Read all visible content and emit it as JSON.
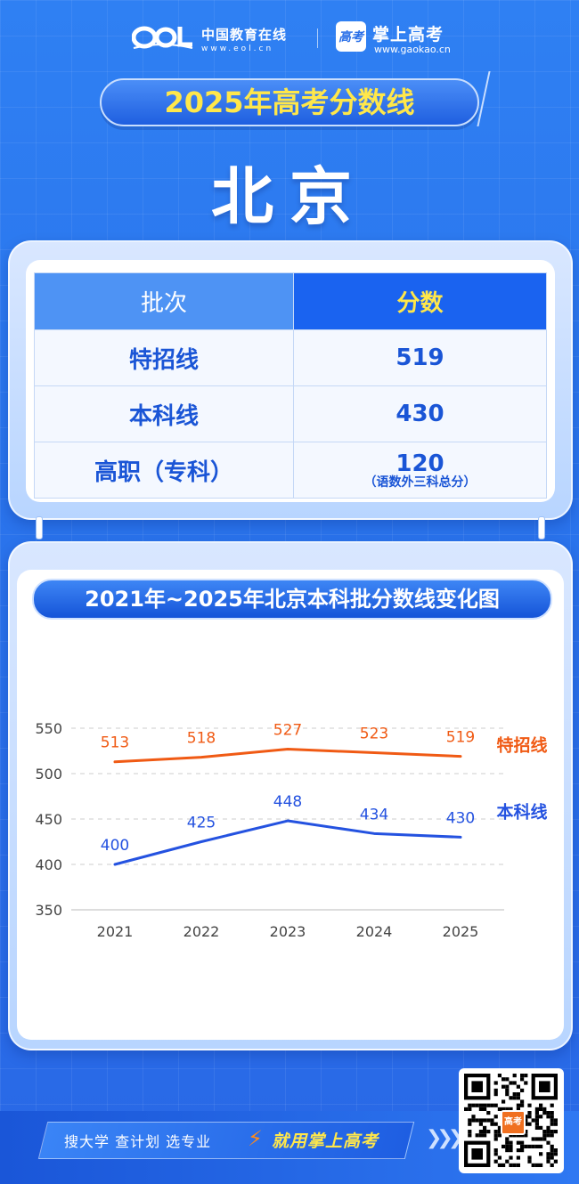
{
  "header": {
    "eol_name": "中国教育在线",
    "eol_url": "www.eol.cn",
    "gaokao_badge": "高考",
    "gaokao_name": "掌上高考",
    "gaokao_url": "www.gaokao.cn"
  },
  "title": "2025年高考分数线",
  "city": "北京",
  "table": {
    "headers": [
      "批次",
      "分数"
    ],
    "rows": [
      {
        "batch": "特招线",
        "score": "519",
        "note": ""
      },
      {
        "batch": "本科线",
        "score": "430",
        "note": ""
      },
      {
        "batch": "高职（专科）",
        "score": "120",
        "note": "（语数外三科总分）"
      }
    ]
  },
  "chart_title": "2021年~2025年北京本科批分数线变化图",
  "chart_data": {
    "type": "line",
    "x": [
      "2021",
      "2022",
      "2023",
      "2024",
      "2025"
    ],
    "yticks": [
      "550",
      "500",
      "450",
      "400",
      "350"
    ],
    "ylim": [
      350,
      550
    ],
    "grid": "horizontal-dashed",
    "legend": "right",
    "series": [
      {
        "name": "特招线",
        "values": [
          513,
          518,
          527,
          523,
          519
        ],
        "color": "#f05a14"
      },
      {
        "name": "本科线",
        "values": [
          400,
          425,
          448,
          434,
          430
        ],
        "color": "#2452e0"
      }
    ]
  },
  "footer": {
    "slogan_left": "搜大学  查计划  选专业",
    "slogan_right": "就用掌上高考",
    "qr_badge": "高考"
  }
}
